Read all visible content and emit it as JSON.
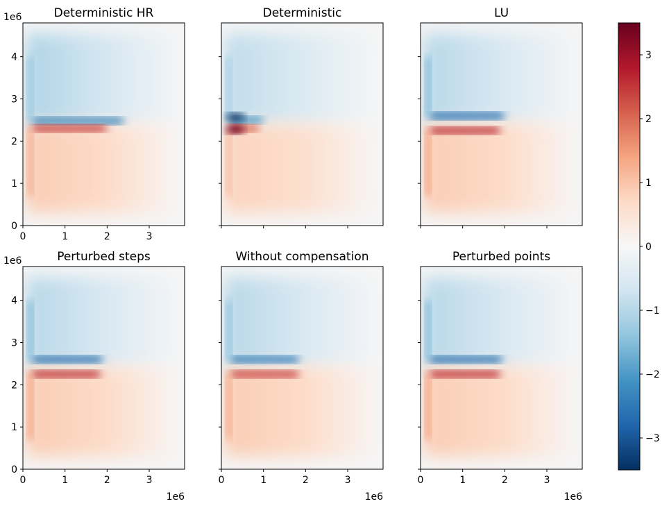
{
  "chart_data": [
    {
      "type": "heatmap",
      "title": "Deterministic HR",
      "x_ticks": [
        "0",
        "1",
        "2",
        "3"
      ],
      "y_ticks": [
        "0",
        "1",
        "2",
        "3",
        "4"
      ],
      "x_offset_label": "",
      "y_offset_label": "1e6",
      "xlim": [
        0,
        3840000
      ],
      "ylim": [
        0,
        4800000
      ],
      "field": {
        "upper_extent": [
          200000,
          2400000
        ],
        "lower_extent": [
          200000,
          2000000
        ],
        "upper_peak": -2.3,
        "lower_peak": 2.4,
        "upper_band_y": 2480000,
        "lower_band_y": 2300000,
        "upper_background": -1.1,
        "lower_background": 0.9,
        "blobs": []
      }
    },
    {
      "type": "heatmap",
      "title": "Deterministic",
      "x_ticks": [],
      "y_ticks": [],
      "x_offset_label": "",
      "y_offset_label": "",
      "xlim": [
        0,
        3840000
      ],
      "ylim": [
        0,
        4800000
      ],
      "field": {
        "upper_extent": [
          200000,
          1000000
        ],
        "lower_extent": [
          200000,
          900000
        ],
        "upper_peak": -2.0,
        "lower_peak": 2.0,
        "upper_band_y": 2500000,
        "lower_band_y": 2300000,
        "upper_background": -0.9,
        "lower_background": 0.8,
        "blobs": [
          {
            "x": 330000,
            "y": 2560000,
            "value": -3.4,
            "rx": 230000,
            "ry": 110000
          },
          {
            "x": 330000,
            "y": 2280000,
            "value": 3.4,
            "rx": 230000,
            "ry": 110000
          }
        ]
      }
    },
    {
      "type": "heatmap",
      "title": "LU",
      "x_ticks": [],
      "y_ticks": [],
      "x_offset_label": "",
      "y_offset_label": "",
      "xlim": [
        0,
        3840000
      ],
      "ylim": [
        0,
        4800000
      ],
      "field": {
        "upper_extent": [
          200000,
          2000000
        ],
        "lower_extent": [
          200000,
          1900000
        ],
        "upper_peak": -2.6,
        "lower_peak": 2.6,
        "upper_band_y": 2600000,
        "lower_band_y": 2250000,
        "upper_background": -1.0,
        "lower_background": 0.9,
        "blobs": []
      }
    },
    {
      "type": "heatmap",
      "title": "Perturbed steps",
      "x_ticks": [
        "0",
        "1",
        "2",
        "3"
      ],
      "y_ticks": [
        "0",
        "1",
        "2",
        "3",
        "4"
      ],
      "x_offset_label": "1e6",
      "y_offset_label": "1e6",
      "xlim": [
        0,
        3840000
      ],
      "ylim": [
        0,
        4800000
      ],
      "field": {
        "upper_extent": [
          200000,
          1900000
        ],
        "lower_extent": [
          200000,
          1850000
        ],
        "upper_peak": -2.6,
        "lower_peak": 2.6,
        "upper_band_y": 2600000,
        "lower_band_y": 2250000,
        "upper_background": -1.0,
        "lower_background": 0.9,
        "blobs": []
      }
    },
    {
      "type": "heatmap",
      "title": "Without compensation",
      "x_ticks": [
        "0",
        "1",
        "2",
        "3"
      ],
      "y_ticks": [],
      "x_offset_label": "1e6",
      "y_offset_label": "",
      "xlim": [
        0,
        3840000
      ],
      "ylim": [
        0,
        4800000
      ],
      "field": {
        "upper_extent": [
          200000,
          1850000
        ],
        "lower_extent": [
          200000,
          1850000
        ],
        "upper_peak": -2.4,
        "lower_peak": 2.4,
        "upper_band_y": 2600000,
        "lower_band_y": 2250000,
        "upper_background": -1.0,
        "lower_background": 0.9,
        "blobs": []
      }
    },
    {
      "type": "heatmap",
      "title": "Perturbed points",
      "x_ticks": [
        "0",
        "1",
        "2",
        "3"
      ],
      "y_ticks": [],
      "x_offset_label": "1e6",
      "y_offset_label": "",
      "xlim": [
        0,
        3840000
      ],
      "ylim": [
        0,
        4800000
      ],
      "field": {
        "upper_extent": [
          200000,
          1950000
        ],
        "lower_extent": [
          200000,
          1900000
        ],
        "upper_peak": -2.6,
        "lower_peak": 2.6,
        "upper_band_y": 2600000,
        "lower_band_y": 2250000,
        "upper_background": -1.0,
        "lower_background": 0.9,
        "blobs": []
      }
    }
  ],
  "colorbar": {
    "colormap": "RdBu_r",
    "vmin": -3.5,
    "vmax": 3.5,
    "ticks": [
      3,
      2,
      1,
      0,
      -1,
      -2,
      -3
    ],
    "tick_labels": [
      "3",
      "2",
      "1",
      "0",
      "−1",
      "−2",
      "−3"
    ],
    "stops": [
      "#053061",
      "#2166ac",
      "#4393c3",
      "#92c5de",
      "#d1e5f0",
      "#f7f7f7",
      "#fddbc7",
      "#f4a582",
      "#d6604d",
      "#b2182b",
      "#67001f"
    ]
  }
}
